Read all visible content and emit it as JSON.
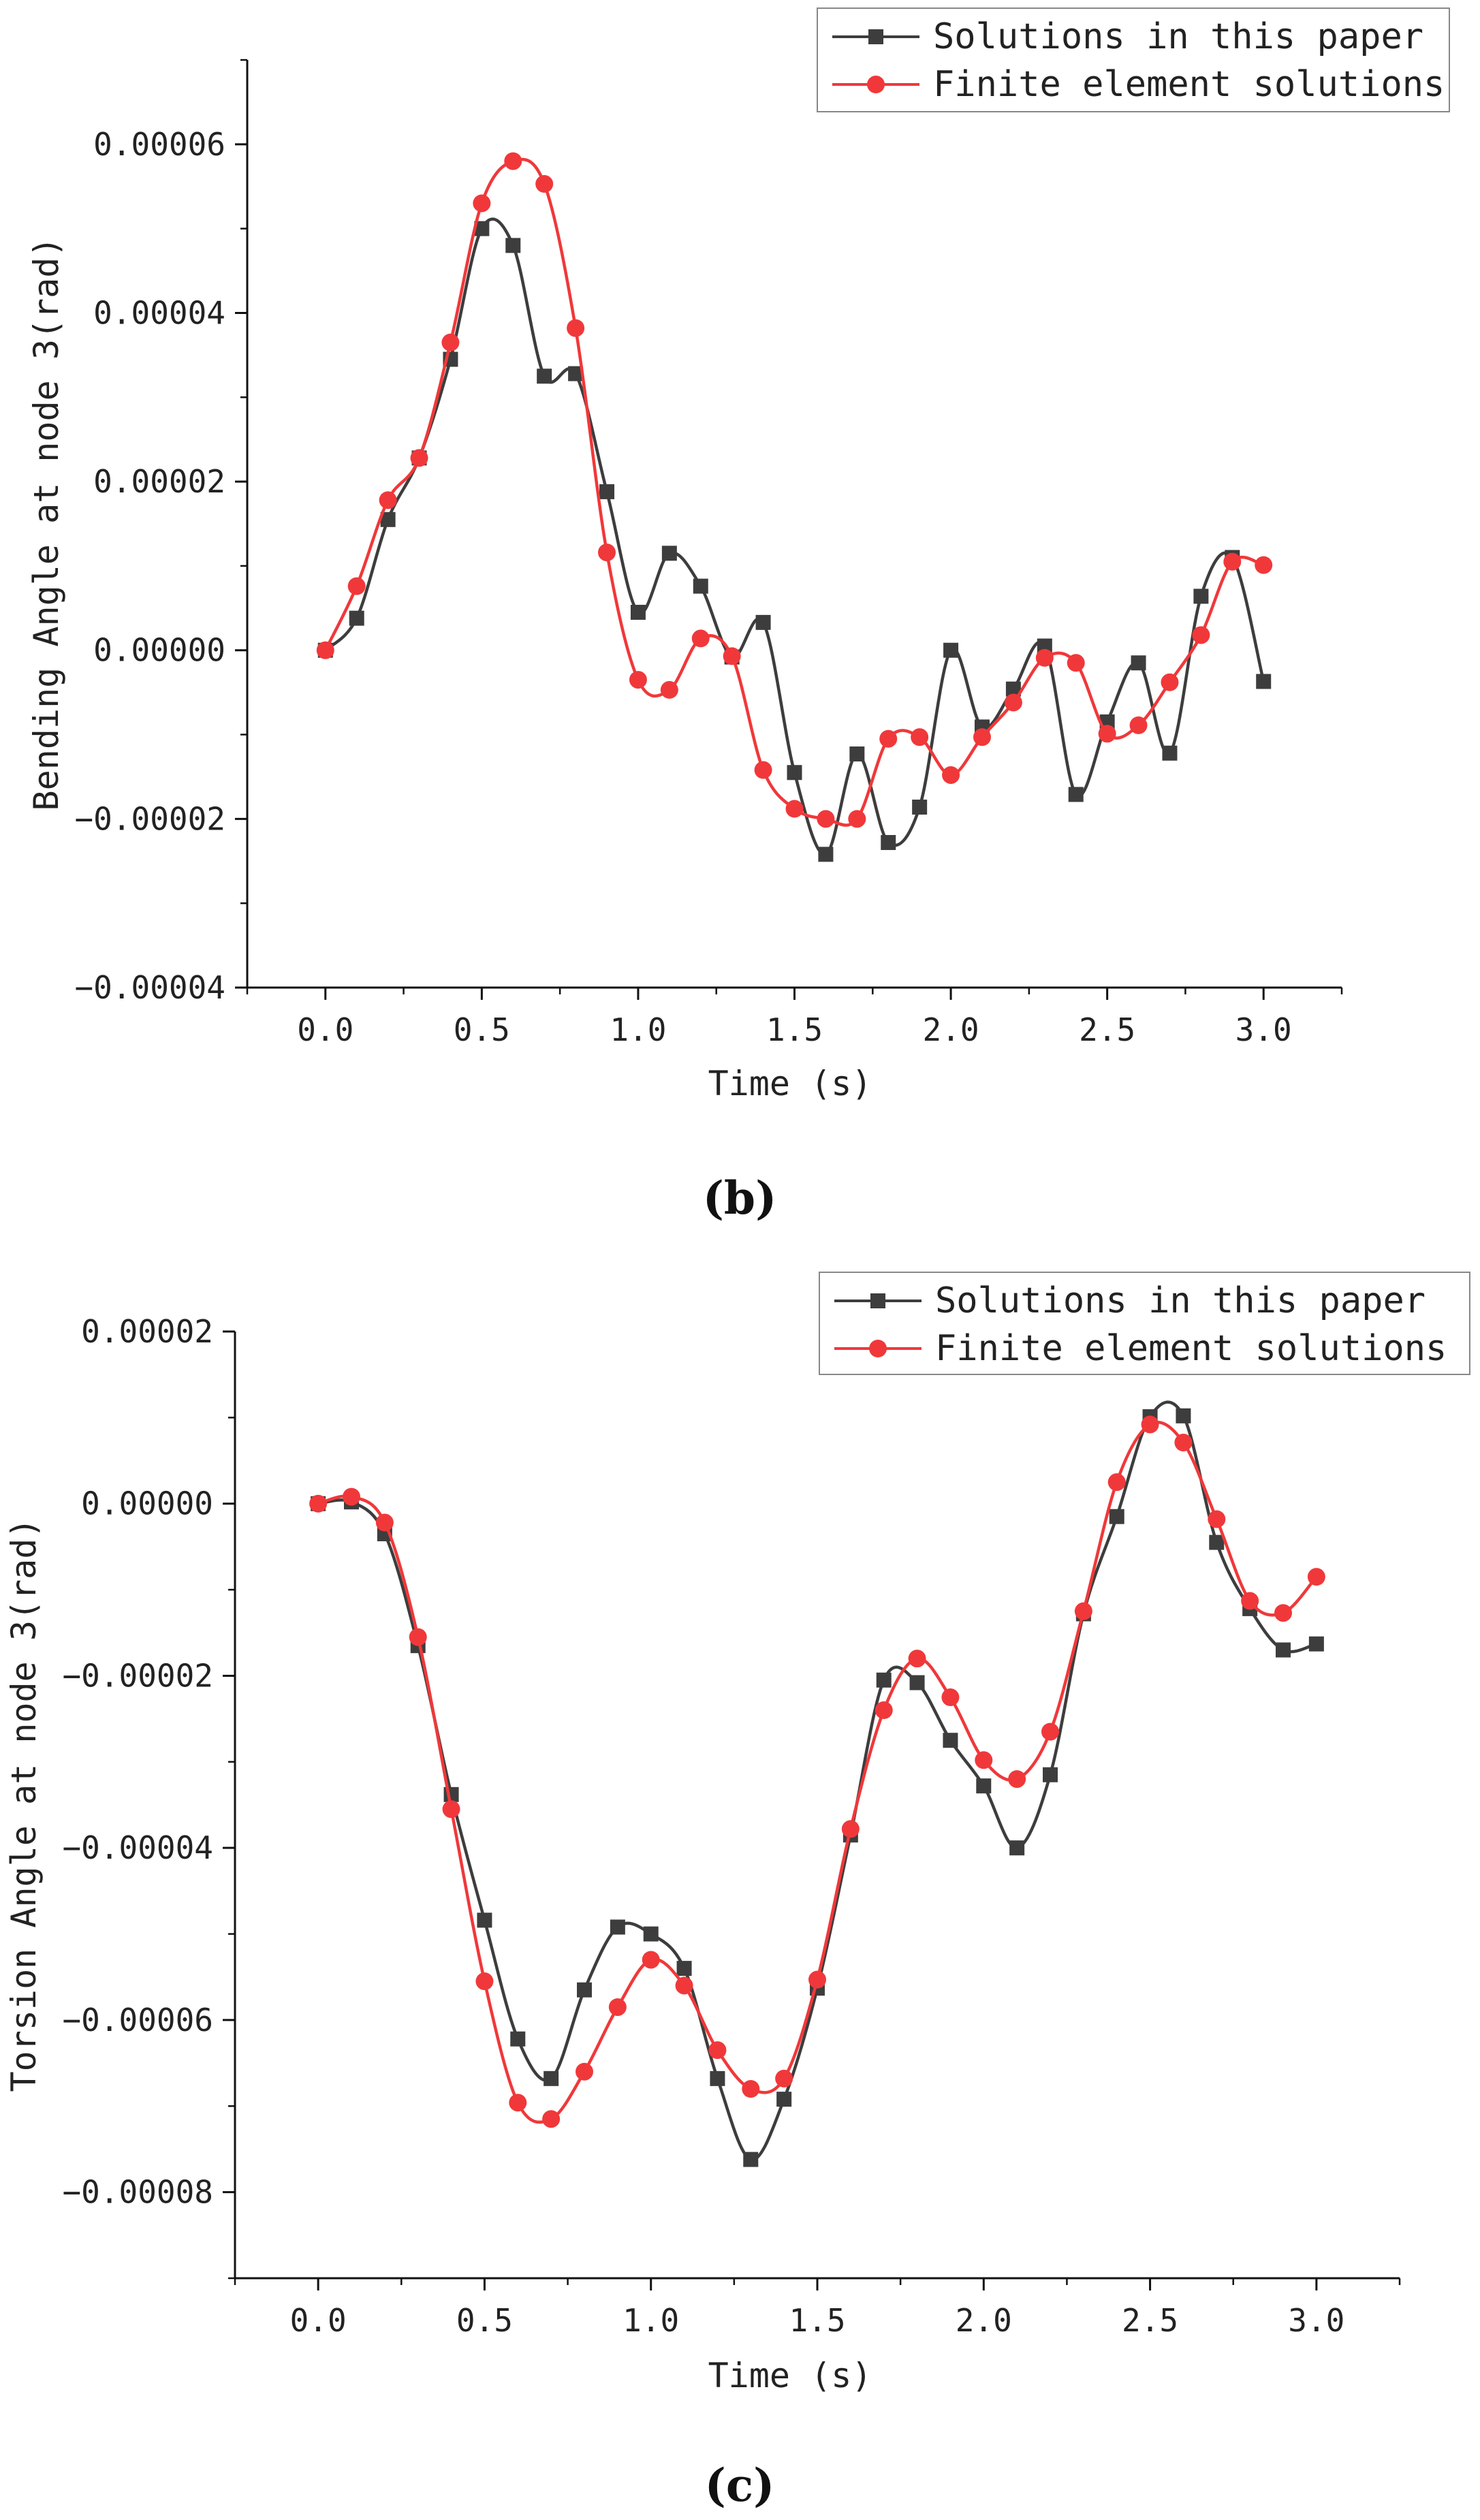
{
  "figure": {
    "panel_b_label": "(b)",
    "panel_c_label": "(c)"
  },
  "chart_data": [
    {
      "type": "line",
      "panel": "b",
      "title": "",
      "xlabel": "Time (s)",
      "ylabel": "Bending Angle at node 3(rad)",
      "xlim": [
        -0.25,
        3.25
      ],
      "ylim": [
        -4e-05,
        7e-05
      ],
      "xticks": [
        0.0,
        0.5,
        1.0,
        1.5,
        2.0,
        2.5,
        3.0
      ],
      "xtick_labels": [
        "0.0",
        "0.5",
        "1.0",
        "1.5",
        "2.0",
        "2.5",
        "3.0"
      ],
      "yticks": [
        -4e-05,
        -2e-05,
        0.0,
        2e-05,
        4e-05,
        6e-05
      ],
      "ytick_labels": [
        "−0.00004",
        "−0.00002",
        "0.00000",
        "0.00002",
        "0.00004",
        "0.00006"
      ],
      "legend_position": "top-right",
      "grid": false,
      "series": [
        {
          "name": "Solutions in this paper",
          "color": "#3d3d3d",
          "marker": "square",
          "x": [
            0.0,
            0.1,
            0.2,
            0.3,
            0.4,
            0.5,
            0.6,
            0.7,
            0.8,
            0.9,
            1.0,
            1.1,
            1.2,
            1.3,
            1.4,
            1.5,
            1.6,
            1.7,
            1.8,
            1.9,
            2.0,
            2.1,
            2.2,
            2.3,
            2.4,
            2.5,
            2.6,
            2.7,
            2.8,
            2.9,
            3.0
          ],
          "y": [
            0.0,
            3.8e-06,
            1.55e-05,
            2.28e-05,
            3.45e-05,
            5e-05,
            4.8e-05,
            3.25e-05,
            3.28e-05,
            1.88e-05,
            4.5e-06,
            1.15e-05,
            7.6e-06,
            -8e-07,
            3.3e-06,
            -1.45e-05,
            -2.42e-05,
            -1.23e-05,
            -2.28e-05,
            -1.86e-05,
            0.0,
            -9.1e-06,
            -4.6e-06,
            5e-07,
            -1.71e-05,
            -8.5e-06,
            -1.5e-06,
            -1.22e-05,
            6.4e-06,
            1.1e-05,
            -3.7e-06
          ]
        },
        {
          "name": "Finite element solutions",
          "color": "#f0383a",
          "marker": "circle",
          "x": [
            0.0,
            0.1,
            0.2,
            0.3,
            0.4,
            0.5,
            0.6,
            0.7,
            0.8,
            0.9,
            1.0,
            1.1,
            1.2,
            1.3,
            1.4,
            1.5,
            1.6,
            1.7,
            1.8,
            1.9,
            2.0,
            2.1,
            2.2,
            2.3,
            2.4,
            2.5,
            2.6,
            2.7,
            2.8,
            2.9,
            3.0
          ],
          "y": [
            0.0,
            7.6e-06,
            1.78e-05,
            2.28e-05,
            3.65e-05,
            5.3e-05,
            5.8e-05,
            5.53e-05,
            3.82e-05,
            1.16e-05,
            -3.5e-06,
            -4.7e-06,
            1.4e-06,
            -7e-07,
            -1.42e-05,
            -1.88e-05,
            -2e-05,
            -2e-05,
            -1.05e-05,
            -1.03e-05,
            -1.48e-05,
            -1.03e-05,
            -6.2e-06,
            -9e-07,
            -1.5e-06,
            -9.9e-06,
            -8.9e-06,
            -3.8e-06,
            1.8e-06,
            1.05e-05,
            1.01e-05
          ]
        }
      ]
    },
    {
      "type": "line",
      "panel": "c",
      "title": "",
      "xlabel": "Time (s)",
      "ylabel": "Torsion Angle at node 3(rad)",
      "xlim": [
        -0.25,
        3.25
      ],
      "ylim": [
        -9e-05,
        2e-05
      ],
      "xticks": [
        0.0,
        0.5,
        1.0,
        1.5,
        2.0,
        2.5,
        3.0
      ],
      "xtick_labels": [
        "0.0",
        "0.5",
        "1.0",
        "1.5",
        "2.0",
        "2.5",
        "3.0"
      ],
      "yticks": [
        -8e-05,
        -6e-05,
        -4e-05,
        -2e-05,
        0.0,
        2e-05
      ],
      "ytick_labels": [
        "−0.00008",
        "−0.00006",
        "−0.00004",
        "−0.00002",
        "0.00000",
        "0.00002"
      ],
      "legend_position": "top-right",
      "grid": false,
      "series": [
        {
          "name": "Solutions in this paper",
          "color": "#3d3d3d",
          "marker": "square",
          "x": [
            0.0,
            0.1,
            0.2,
            0.3,
            0.4,
            0.5,
            0.6,
            0.7,
            0.8,
            0.9,
            1.0,
            1.1,
            1.2,
            1.3,
            1.4,
            1.5,
            1.6,
            1.7,
            1.8,
            1.9,
            2.0,
            2.1,
            2.2,
            2.3,
            2.4,
            2.5,
            2.6,
            2.7,
            2.8,
            2.9,
            3.0
          ],
          "y": [
            0.0,
            2e-07,
            -3.5e-06,
            -1.65e-05,
            -3.38e-05,
            -4.84e-05,
            -6.22e-05,
            -6.68e-05,
            -5.65e-05,
            -4.92e-05,
            -5e-05,
            -5.4e-05,
            -6.68e-05,
            -7.62e-05,
            -6.92e-05,
            -5.63e-05,
            -3.85e-05,
            -2.05e-05,
            -2.08e-05,
            -2.75e-05,
            -3.28e-05,
            -4e-05,
            -3.15e-05,
            -1.28e-05,
            -1.5e-06,
            1.01e-05,
            1.02e-05,
            -4.5e-06,
            -1.22e-05,
            -1.7e-05,
            -1.63e-05
          ]
        },
        {
          "name": "Finite element solutions",
          "color": "#f0383a",
          "marker": "circle",
          "x": [
            0.0,
            0.1,
            0.2,
            0.3,
            0.4,
            0.5,
            0.6,
            0.7,
            0.8,
            0.9,
            1.0,
            1.1,
            1.2,
            1.3,
            1.4,
            1.5,
            1.6,
            1.7,
            1.8,
            1.9,
            2.0,
            2.1,
            2.2,
            2.3,
            2.4,
            2.5,
            2.6,
            2.7,
            2.8,
            2.9,
            3.0
          ],
          "y": [
            0.0,
            8e-07,
            -2.2e-06,
            -1.55e-05,
            -3.55e-05,
            -5.55e-05,
            -6.96e-05,
            -7.15e-05,
            -6.6e-05,
            -5.85e-05,
            -5.3e-05,
            -5.6e-05,
            -6.35e-05,
            -6.8e-05,
            -6.68e-05,
            -5.53e-05,
            -3.78e-05,
            -2.4e-05,
            -1.8e-05,
            -2.25e-05,
            -2.98e-05,
            -3.2e-05,
            -2.65e-05,
            -1.25e-05,
            2.5e-06,
            9.2e-06,
            7.1e-06,
            -1.8e-06,
            -1.13e-05,
            -1.27e-05,
            -8.5e-06
          ]
        }
      ]
    }
  ]
}
